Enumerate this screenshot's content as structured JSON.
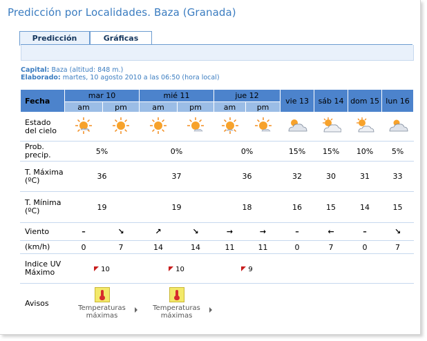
{
  "page": {
    "title": "Predicción por Localidades. Baza (Granada)",
    "tabs": [
      {
        "label": "Predicción",
        "active": true
      },
      {
        "label": "Gráficas",
        "active": false
      }
    ]
  },
  "meta": {
    "capital_label": "Capital:",
    "capital_value": "Baza (altitud: 848 m.)",
    "elaborado_label": "Elaborado:",
    "elaborado_value": "martes, 10 agosto 2010 a las 06:50 (hora local)"
  },
  "table": {
    "fecha_label": "Fecha",
    "am": "am",
    "pm": "pm",
    "days": [
      "mar 10",
      "mié 11",
      "jue 12",
      "vie 13",
      "sáb 14",
      "dom 15",
      "lun 16"
    ],
    "row_labels": {
      "estado": "Estado del cielo",
      "precip": "Prob. precip.",
      "tmax": "T. Máxima (ºC)",
      "tmin": "T. Mínima (ºC)",
      "viento": "Viento",
      "kmh": "(km/h)",
      "uv": "Indice UV Máximo",
      "avisos": "Avisos"
    },
    "sky_icons": [
      "sun-icon",
      "sun-icon",
      "sun-icon",
      "sun-cloud-icon",
      "sun-icon",
      "sun-cloud-icon",
      "cloud-sun-icon",
      "cloud-sun-icon",
      "cloud-sun-icon",
      "cloud-sun-icon"
    ],
    "precip": [
      "5%",
      "0%",
      "0%",
      "15%",
      "15%",
      "10%",
      "5%"
    ],
    "tmax": [
      "36",
      "37",
      "36",
      "32",
      "30",
      "31",
      "33"
    ],
    "tmin": [
      "19",
      "19",
      "18",
      "16",
      "15",
      "14",
      "15"
    ],
    "wind_icons": [
      "calm-dash",
      "arrow-down-right-icon",
      "arrow-up-right-icon",
      "arrow-down-right-icon",
      "arrow-right-icon",
      "arrow-right-icon",
      "calm-dash",
      "arrow-left-icon",
      "calm-dash",
      "arrow-down-right-icon"
    ],
    "wind_speeds": [
      "0",
      "7",
      "14",
      "14",
      "11",
      "11",
      "0",
      "7",
      "0",
      "7"
    ],
    "uv": [
      "10",
      "10",
      "9"
    ],
    "avisos": [
      {
        "text_1": "Temperaturas",
        "text_2": "máximas"
      },
      {
        "text_1": "Temperaturas",
        "text_2": "máximas"
      }
    ]
  },
  "colors": {
    "header_dark": "#4c83cc",
    "header_light": "#9bbde6",
    "tmax": "#c82828",
    "tmin": "#2a5fa6",
    "title": "#3a7cc0"
  }
}
